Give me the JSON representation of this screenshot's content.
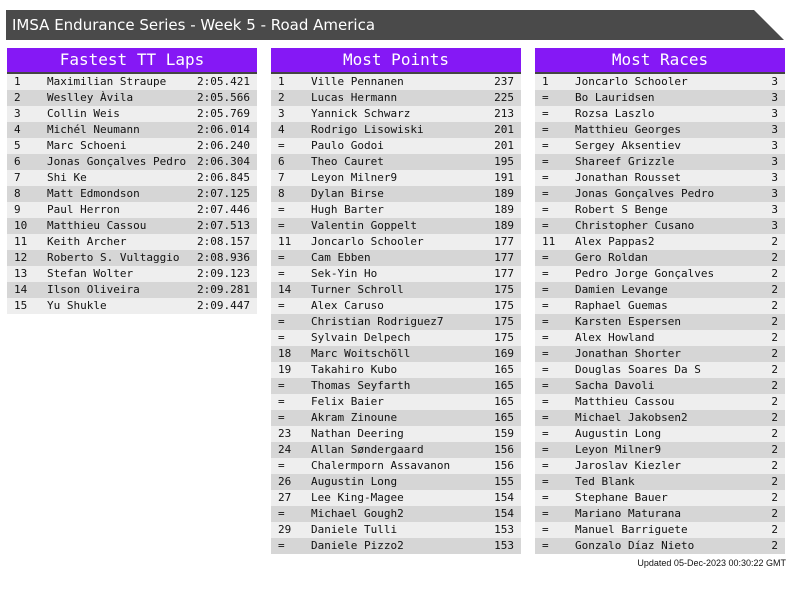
{
  "title": "IMSA Endurance Series - Week 5 - Road America",
  "colors": {
    "header_bg": "#8518f5",
    "title_bg": "#4a4a4a",
    "row_light": "#eeeeee",
    "row_dark": "#d6d6d6"
  },
  "panels": [
    {
      "title": "Fastest TT Laps",
      "rows": [
        [
          "1",
          "Maximilian Straupe",
          "2:05.421"
        ],
        [
          "2",
          "Weslley Àvila",
          "2:05.566"
        ],
        [
          "3",
          "Collin Weis",
          "2:05.769"
        ],
        [
          "4",
          "Michél Neumann",
          "2:06.014"
        ],
        [
          "5",
          "Marc Schoeni",
          "2:06.240"
        ],
        [
          "6",
          "Jonas Gonçalves Pedro",
          "2:06.304"
        ],
        [
          "7",
          "Shi Ke",
          "2:06.845"
        ],
        [
          "8",
          "Matt Edmondson",
          "2:07.125"
        ],
        [
          "9",
          "Paul Herron",
          "2:07.446"
        ],
        [
          "10",
          "Matthieu Cassou",
          "2:07.513"
        ],
        [
          "11",
          "Keith Archer",
          "2:08.157"
        ],
        [
          "12",
          "Roberto S. Vultaggio",
          "2:08.936"
        ],
        [
          "13",
          "Stefan Wolter",
          "2:09.123"
        ],
        [
          "14",
          "Ilson Oliveira",
          "2:09.281"
        ],
        [
          "15",
          "Yu Shukle",
          "2:09.447"
        ]
      ]
    },
    {
      "title": "Most Points",
      "rows": [
        [
          "1",
          "Ville Pennanen",
          "237"
        ],
        [
          "2",
          "Lucas Hermann",
          "225"
        ],
        [
          "3",
          "Yannick Schwarz",
          "213"
        ],
        [
          "4",
          "Rodrigo Lisowiski",
          "201"
        ],
        [
          "=",
          "Paulo Godoi",
          "201"
        ],
        [
          "6",
          "Theo Cauret",
          "195"
        ],
        [
          "7",
          "Leyon Milner9",
          "191"
        ],
        [
          "8",
          "Dylan Birse",
          "189"
        ],
        [
          "=",
          "Hugh Barter",
          "189"
        ],
        [
          "=",
          "Valentin Goppelt",
          "189"
        ],
        [
          "11",
          "Joncarlo Schooler",
          "177"
        ],
        [
          "=",
          "Cam Ebben",
          "177"
        ],
        [
          "=",
          "Sek-Yin Ho",
          "177"
        ],
        [
          "14",
          "Turner Schroll",
          "175"
        ],
        [
          "=",
          "Alex Caruso",
          "175"
        ],
        [
          "=",
          "Christian Rodriguez7",
          "175"
        ],
        [
          "=",
          "Sylvain Delpech",
          "175"
        ],
        [
          "18",
          "Marc Woitschöll",
          "169"
        ],
        [
          "19",
          "Takahiro Kubo",
          "165"
        ],
        [
          "=",
          "Thomas Seyfarth",
          "165"
        ],
        [
          "=",
          "Felix Baier",
          "165"
        ],
        [
          "=",
          "Akram Zinoune",
          "165"
        ],
        [
          "23",
          "Nathan Deering",
          "159"
        ],
        [
          "24",
          "Allan Søndergaard",
          "156"
        ],
        [
          "=",
          "Chalermporn Assavanon",
          "156"
        ],
        [
          "26",
          "Augustin Long",
          "155"
        ],
        [
          "27",
          "Lee King-Magee",
          "154"
        ],
        [
          "=",
          "Michael Gough2",
          "154"
        ],
        [
          "29",
          "Daniele Tulli",
          "153"
        ],
        [
          "=",
          "Daniele Pizzo2",
          "153"
        ]
      ]
    },
    {
      "title": "Most Races",
      "rows": [
        [
          "1",
          "Joncarlo Schooler",
          "3"
        ],
        [
          "=",
          "Bo Lauridsen",
          "3"
        ],
        [
          "=",
          "Rozsa Laszlo",
          "3"
        ],
        [
          "=",
          "Matthieu Georges",
          "3"
        ],
        [
          "=",
          "Sergey Aksentiev",
          "3"
        ],
        [
          "=",
          "Shareef Grizzle",
          "3"
        ],
        [
          "=",
          "Jonathan Rousset",
          "3"
        ],
        [
          "=",
          "Jonas Gonçalves Pedro",
          "3"
        ],
        [
          "=",
          "Robert S Benge",
          "3"
        ],
        [
          "=",
          "Christopher Cusano",
          "3"
        ],
        [
          "11",
          "Alex Pappas2",
          "2"
        ],
        [
          "=",
          "Gero Roldan",
          "2"
        ],
        [
          "=",
          "Pedro Jorge Gonçalves",
          "2"
        ],
        [
          "=",
          "Damien Levange",
          "2"
        ],
        [
          "=",
          "Raphael Guemas",
          "2"
        ],
        [
          "=",
          "Karsten Espersen",
          "2"
        ],
        [
          "=",
          "Alex Howland",
          "2"
        ],
        [
          "=",
          "Jonathan Shorter",
          "2"
        ],
        [
          "=",
          "Douglas Soares Da S",
          "2"
        ],
        [
          "=",
          "Sacha Davoli",
          "2"
        ],
        [
          "=",
          "Matthieu Cassou",
          "2"
        ],
        [
          "=",
          "Michael Jakobsen2",
          "2"
        ],
        [
          "=",
          "Augustin Long",
          "2"
        ],
        [
          "=",
          "Leyon Milner9",
          "2"
        ],
        [
          "=",
          "Jaroslav Kiezler",
          "2"
        ],
        [
          "=",
          "Ted Blank",
          "2"
        ],
        [
          "=",
          "Stephane Bauer",
          "2"
        ],
        [
          "=",
          "Mariano Maturana",
          "2"
        ],
        [
          "=",
          "Manuel Barriguete",
          "2"
        ],
        [
          "=",
          "Gonzalo Díaz Nieto",
          "2"
        ]
      ]
    }
  ],
  "updated": "Updated 05-Dec-2023 00:30:22 GMT"
}
